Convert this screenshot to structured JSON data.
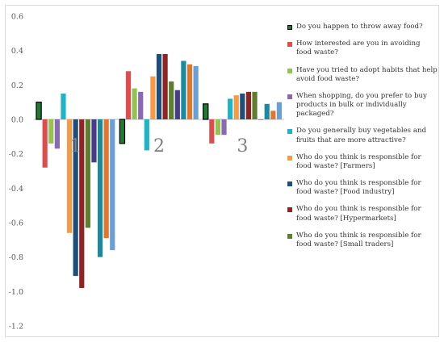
{
  "chart_data": {
    "type": "bar",
    "categories": [
      "1",
      "2",
      "3"
    ],
    "ylim": [
      -1.2,
      0.6
    ],
    "yticks": [
      "0.6",
      "0.4",
      "0.2",
      "0.0",
      "-0.2",
      "-0.4",
      "-0.6",
      "-0.8",
      "-1.0",
      "-1.2"
    ],
    "grid": false,
    "legend_position": "right",
    "series": [
      {
        "name": "Do you happen to throw away food?",
        "color": "#1e7b34",
        "edge": "#000000",
        "values": [
          0.1,
          -0.14,
          0.09
        ]
      },
      {
        "name": "How interested are you in avoiding food waste?",
        "color": "#de4d4d",
        "values": [
          -0.28,
          0.28,
          -0.14
        ]
      },
      {
        "name": "Have you tried to adopt habits that help avoid food waste?",
        "color": "#92c353",
        "values": [
          -0.14,
          0.18,
          -0.09
        ]
      },
      {
        "name": "When shopping, do you prefer to buy products in bulk or individually packaged?",
        "color": "#8b68b5",
        "values": [
          -0.17,
          0.16,
          -0.09
        ]
      },
      {
        "name": "Do you generally buy vegetables and fruits that are more attractive?",
        "color": "#1fb3c7",
        "values": [
          0.15,
          -0.18,
          0.12
        ]
      },
      {
        "name": "Who do you think is responsible for food waste? [Farmers]",
        "color": "#f59a45",
        "values": [
          -0.66,
          0.25,
          0.14
        ]
      },
      {
        "name": "Who do you think is responsible for food waste? [Food industry]",
        "color": "#1d4f7d",
        "values": [
          -0.91,
          0.38,
          0.15
        ]
      },
      {
        "name": "Who do you think is responsible for food waste? [Hypermarkets]",
        "color": "#8e2424",
        "values": [
          -0.98,
          0.38,
          0.16
        ]
      },
      {
        "name": "Who do you think is responsible for food waste? [Small traders]",
        "color": "#5a7f2e",
        "values": [
          -0.63,
          0.22,
          0.16
        ]
      },
      {
        "color": "#4a3a8a",
        "values": [
          -0.25,
          0.17,
          0.0
        ]
      },
      {
        "color": "#1a8a9e",
        "values": [
          -0.8,
          0.34,
          0.09
        ]
      },
      {
        "color": "#e2762a",
        "values": [
          -0.69,
          0.32,
          0.05
        ]
      },
      {
        "color": "#6a9fd8",
        "values": [
          -0.76,
          0.31,
          0.1
        ]
      }
    ]
  }
}
